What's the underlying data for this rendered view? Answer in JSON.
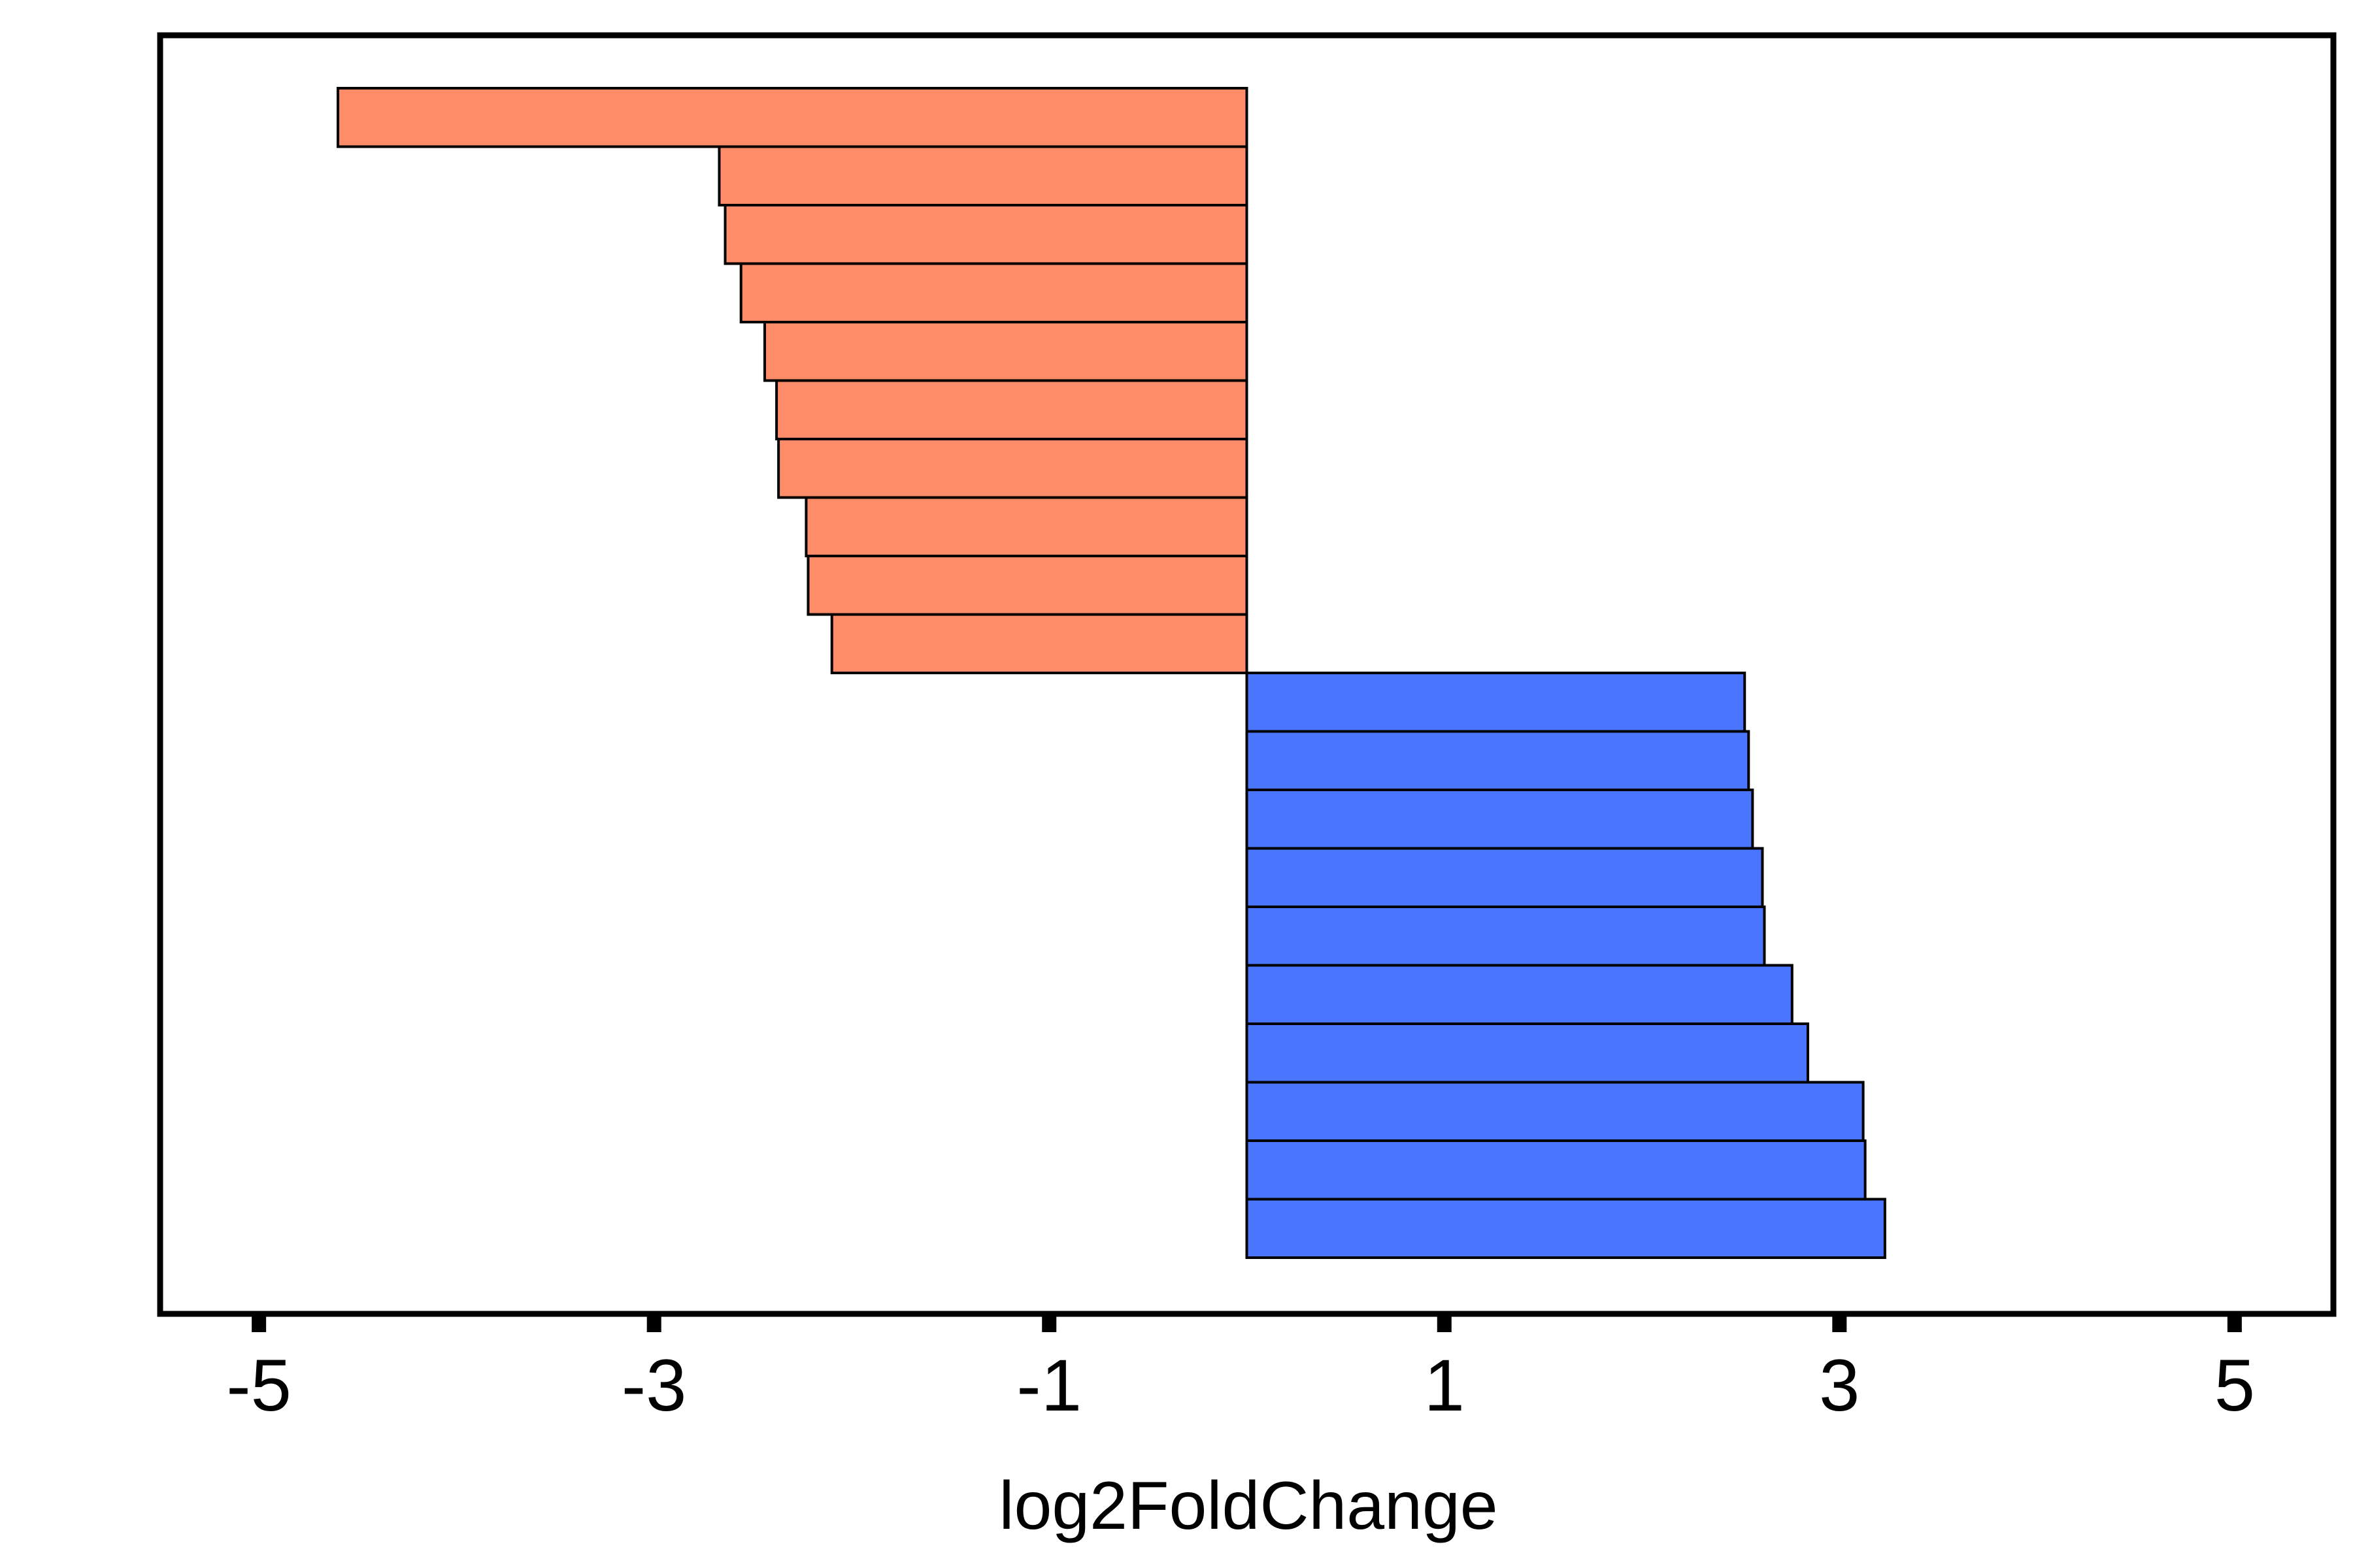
{
  "chart_data": {
    "type": "bar",
    "orientation": "horizontal",
    "xlabel": "log2FoldChange",
    "ylabel": "",
    "xlim": [
      -5.5,
      5.5
    ],
    "x_ticks": [
      -5,
      -3,
      -1,
      1,
      3,
      5
    ],
    "x_tick_labels": [
      "-5",
      "-3",
      "-1",
      "1",
      "3",
      "5"
    ],
    "bar_origin": 0,
    "grid": false,
    "legend": "none",
    "series": [
      {
        "color": "#FF8C69",
        "values": [
          -4.6,
          -2.67,
          -2.64,
          -2.56,
          -2.44,
          -2.38,
          -2.37,
          -2.23,
          -2.22,
          -2.1
        ]
      },
      {
        "color": "#4A76FF",
        "values": [
          2.52,
          2.54,
          2.56,
          2.61,
          2.62,
          2.76,
          2.84,
          3.12,
          3.13,
          3.23
        ]
      }
    ]
  }
}
